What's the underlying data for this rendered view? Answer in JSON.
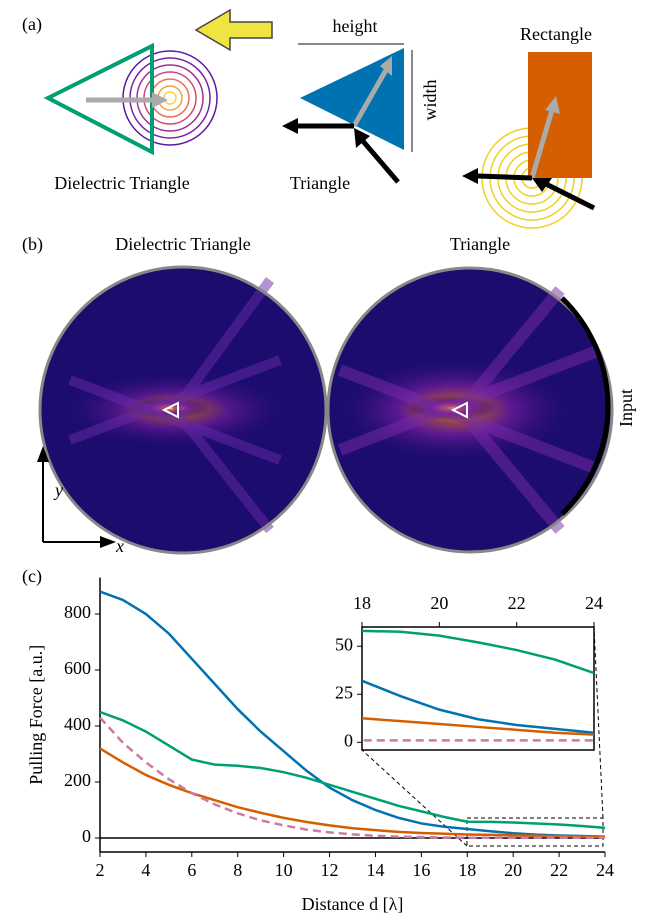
{
  "figure": {
    "panel_labels": [
      "(a)",
      "(b)",
      "(c)"
    ],
    "a": {
      "height": "height",
      "width": "width",
      "rectangle": "Rectangle",
      "dielectric_triangle": "Dielectric Triangle",
      "triangle": "Triangle"
    },
    "b": {
      "left_title": "Dielectric Triangle",
      "right_title": "Triangle",
      "input": "Input",
      "y_axis": "y",
      "x_axis": "x"
    }
  },
  "chart_data": [
    {
      "type": "line",
      "xlabel": "Distance d [λ]",
      "ylabel": "Pulling Force [a.u.]",
      "x": [
        2,
        3,
        4,
        5,
        6,
        7,
        8,
        9,
        10,
        11,
        12,
        13,
        14,
        15,
        16,
        17,
        18,
        19,
        20,
        21,
        22,
        23,
        24
      ],
      "series": [
        {
          "color": "#0072b2",
          "dash": false,
          "values": [
            880,
            850,
            800,
            730,
            640,
            550,
            460,
            380,
            310,
            240,
            180,
            135,
            100,
            72,
            52,
            40,
            32,
            24,
            17,
            12,
            9,
            7,
            5
          ]
        },
        {
          "color": "#009e73",
          "dash": false,
          "values": [
            450,
            420,
            380,
            330,
            280,
            262,
            258,
            250,
            235,
            215,
            190,
            165,
            140,
            115,
            95,
            75,
            58,
            57.5,
            55.5,
            52,
            48,
            43,
            36
          ]
        },
        {
          "color": "#d55e00",
          "dash": false,
          "values": [
            320,
            270,
            225,
            190,
            160,
            135,
            110,
            90,
            72,
            57,
            45,
            35,
            28,
            22,
            18,
            15,
            12.5,
            11,
            9.5,
            8,
            6.5,
            5,
            4
          ]
        },
        {
          "color": "#cc79a7",
          "dash": true,
          "values": [
            430,
            340,
            270,
            210,
            160,
            120,
            88,
            63,
            45,
            30,
            20,
            13,
            8,
            5,
            3,
            2,
            1,
            1,
            1,
            1,
            1,
            1,
            1
          ]
        }
      ],
      "xlim": [
        2,
        24
      ],
      "ylim": [
        -50,
        930
      ],
      "xticks": [
        2,
        4,
        6,
        8,
        10,
        12,
        14,
        16,
        18,
        20,
        22,
        24
      ],
      "yticks": [
        0,
        200,
        400,
        600,
        800
      ]
    },
    {
      "type": "inset",
      "xlim": [
        18,
        24
      ],
      "ylim": [
        -4,
        60
      ],
      "xticks": [
        18,
        20,
        22,
        24
      ],
      "yticks": [
        0,
        25,
        50
      ]
    }
  ]
}
